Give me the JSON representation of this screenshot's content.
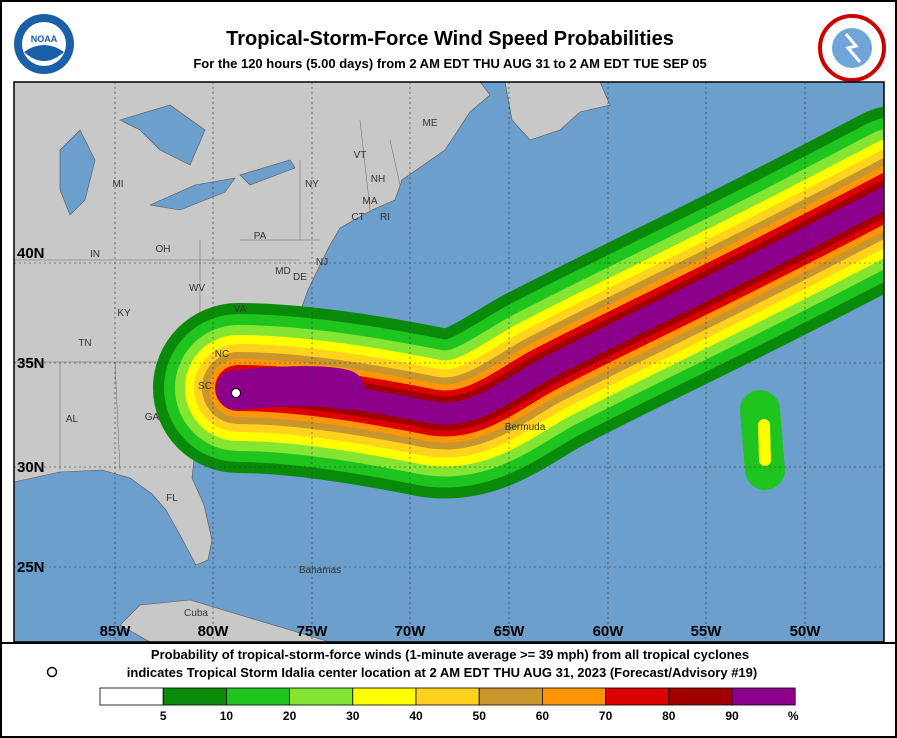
{
  "header": {
    "title": "Tropical-Storm-Force Wind Speed Probabilities",
    "subtitle": "For the 120 hours (5.00 days) from 2 AM EDT THU AUG 31 to 2 AM EDT TUE SEP 05"
  },
  "map": {
    "lon_labels": [
      "85W",
      "80W",
      "75W",
      "70W",
      "65W",
      "60W",
      "55W",
      "50W"
    ],
    "lat_labels": [
      "40N",
      "35N",
      "30N",
      "25N"
    ],
    "place_labels": [
      "ME",
      "MI",
      "NY",
      "VT",
      "NH",
      "MA",
      "CT",
      "RI",
      "PA",
      "IN",
      "OH",
      "NJ",
      "MD",
      "DE",
      "WV",
      "VA",
      "KY",
      "TN",
      "NC",
      "SC",
      "GA",
      "AL",
      "FL",
      "Bermuda",
      "Bahamas",
      "Cuba"
    ]
  },
  "footer": {
    "line1": "Probability of tropical-storm-force winds (1-minute average >= 39 mph) from all tropical cyclones",
    "line2": "indicates Tropical Storm Idalia center location at 2 AM EDT THU AUG 31, 2023 (Forecast/Advisory #19)"
  },
  "legend": {
    "thresholds": [
      5,
      10,
      20,
      30,
      40,
      50,
      60,
      70,
      80,
      90
    ],
    "unit": "%",
    "colors": [
      "#ffffff",
      "#098a09",
      "#1fc41f",
      "#84e632",
      "#ffff00",
      "#ffd21e",
      "#c8962d",
      "#ff960a",
      "#dc0000",
      "#a00000",
      "#8c008c"
    ]
  }
}
